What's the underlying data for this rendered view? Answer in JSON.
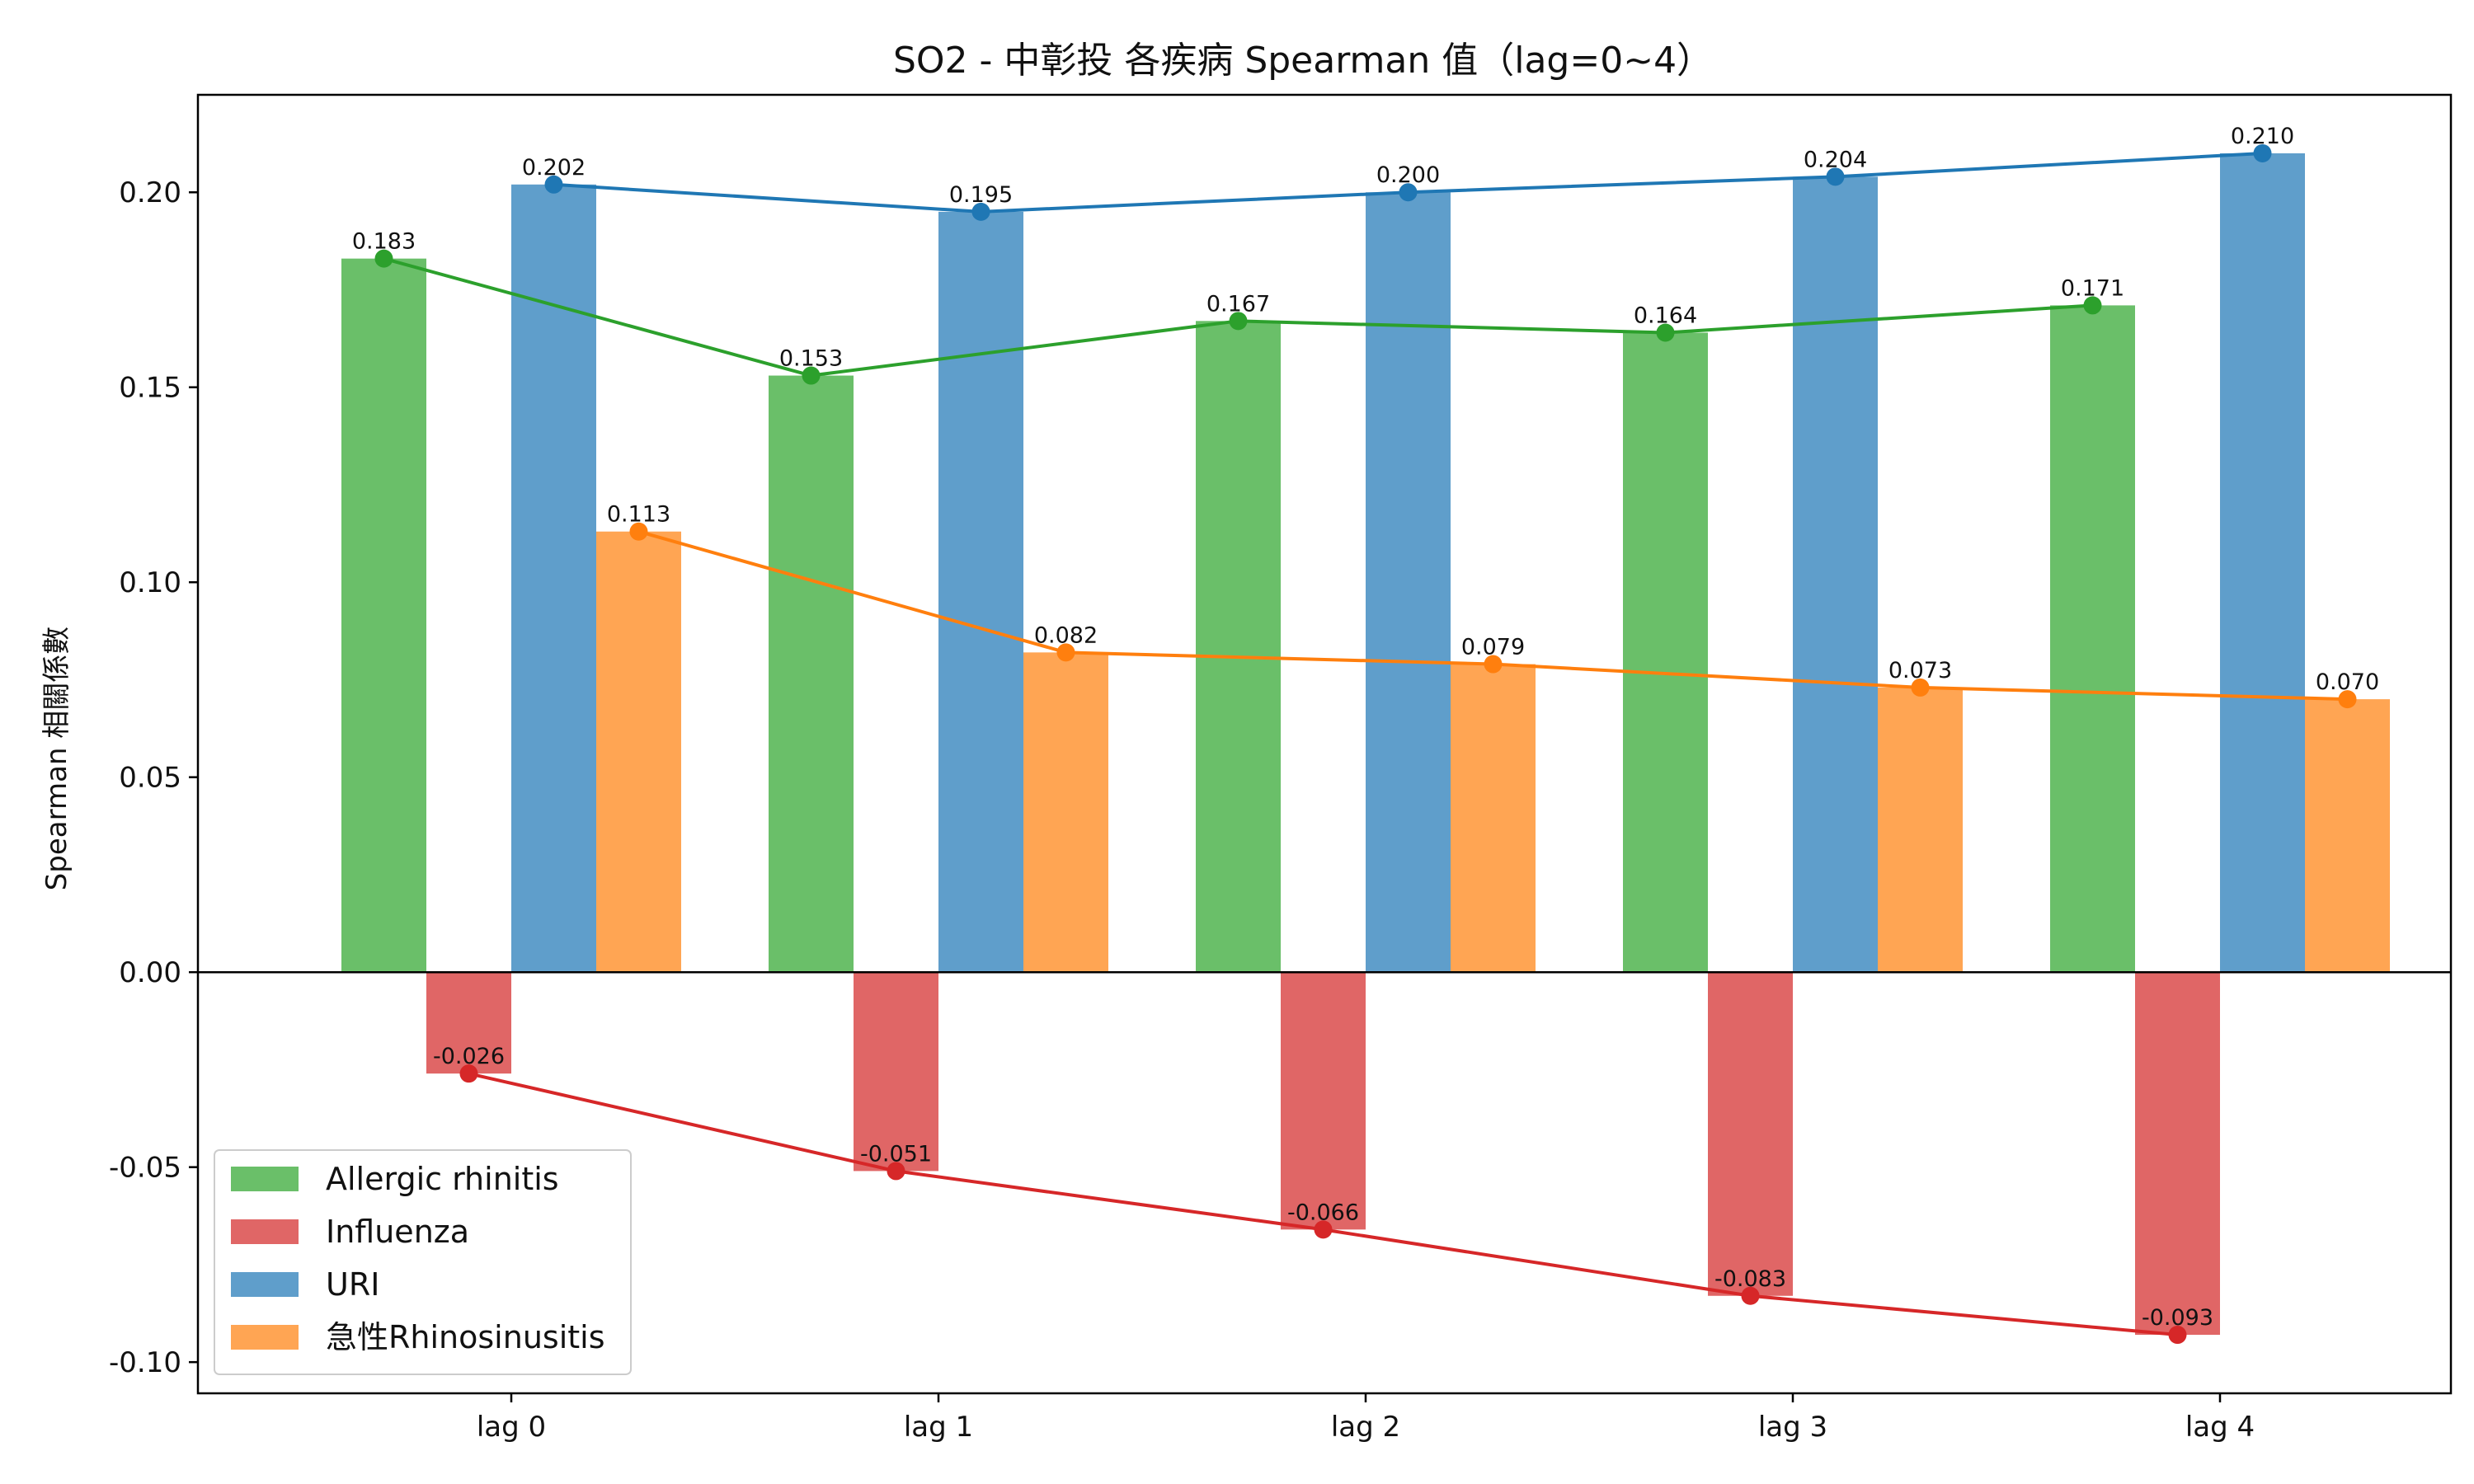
{
  "chart_data": {
    "type": "bar",
    "title": "SO2 - 中彰投 各疾病 Spearman 值（lag=0~4）",
    "xlabel": "",
    "ylabel": "Spearman 相關係數",
    "categories": [
      "lag 0",
      "lag 1",
      "lag 2",
      "lag 3",
      "lag 4"
    ],
    "ylim": [
      -0.108,
      0.225
    ],
    "yticks": [
      -0.1,
      -0.05,
      0.0,
      0.05,
      0.1,
      0.15,
      0.2
    ],
    "ytick_labels": [
      "-0.10",
      "-0.05",
      "0.00",
      "0.05",
      "0.10",
      "0.15",
      "0.20"
    ],
    "grid": false,
    "legend_position": "lower-left",
    "overlay": "line with markers through each series' bar values",
    "series": [
      {
        "name": "Allergic rhinitis",
        "values": [
          0.183,
          0.153,
          0.167,
          0.164,
          0.171
        ],
        "labels": [
          "0.183",
          "0.153",
          "0.167",
          "0.164",
          "0.171"
        ],
        "bar_color": "#6abf69",
        "line_color": "#2ca02c"
      },
      {
        "name": "Influenza",
        "values": [
          -0.026,
          -0.051,
          -0.066,
          -0.083,
          -0.093
        ],
        "labels": [
          "-0.026",
          "-0.051",
          "-0.066",
          "-0.083",
          "-0.093"
        ],
        "bar_color": "#e06666",
        "line_color": "#d62728"
      },
      {
        "name": "URI",
        "values": [
          0.202,
          0.195,
          0.2,
          0.204,
          0.21
        ],
        "labels": [
          "0.202",
          "0.195",
          "0.200",
          "0.204",
          "0.210"
        ],
        "bar_color": "#5f9ecb",
        "line_color": "#1f77b4"
      },
      {
        "name": "急性Rhinosinusitis",
        "values": [
          0.113,
          0.082,
          0.079,
          0.073,
          0.07
        ],
        "labels": [
          "0.113",
          "0.082",
          "0.079",
          "0.073",
          "0.070"
        ],
        "bar_color": "#ffa553",
        "line_color": "#ff7f0e"
      }
    ]
  }
}
